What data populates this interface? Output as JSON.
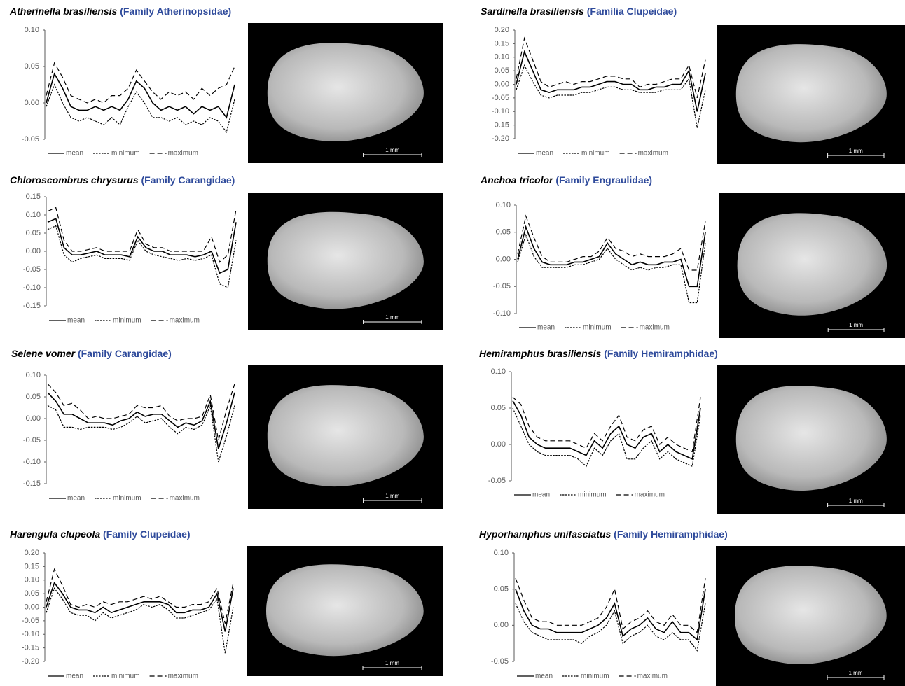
{
  "chart_data": [
    {
      "type": "line",
      "title": "Atherinella brasiliensis",
      "subtitle": "(Family Atherinopsidae)",
      "image_scale_label": "1 mm",
      "ylim": [
        -0.05,
        0.1
      ],
      "yticks": [
        {
          "value": 0.1,
          "label": "0.10"
        },
        0.05,
        {
          "value": 0,
          "label": "0.00"
        },
        -0.05
      ],
      "series": [
        {
          "name": "mean",
          "color": "#000000",
          "dash": "solid",
          "values": [
            0.0,
            0.04,
            0.02,
            -0.005,
            -0.01,
            -0.01,
            -0.005,
            -0.01,
            -0.005,
            -0.01,
            0.005,
            0.03,
            0.02,
            0.0,
            -0.01,
            -0.005,
            -0.01,
            -0.005,
            -0.015,
            -0.005,
            -0.01,
            -0.005,
            -0.02,
            0.025
          ]
        },
        {
          "name": "minimum",
          "color": "#000000",
          "dash": "dotted",
          "values": [
            -0.005,
            0.025,
            0.0,
            -0.02,
            -0.025,
            -0.02,
            -0.025,
            -0.03,
            -0.02,
            -0.03,
            -0.005,
            0.015,
            0.0,
            -0.02,
            -0.02,
            -0.025,
            -0.02,
            -0.03,
            -0.025,
            -0.03,
            -0.02,
            -0.025,
            -0.04,
            0.005
          ]
        },
        {
          "name": "maximum",
          "color": "#000000",
          "dash": "dashed",
          "values": [
            0.01,
            0.055,
            0.035,
            0.01,
            0.005,
            0.0,
            0.005,
            0.0,
            0.01,
            0.01,
            0.02,
            0.045,
            0.03,
            0.015,
            0.005,
            0.015,
            0.01,
            0.015,
            0.005,
            0.02,
            0.01,
            0.02,
            0.025,
            0.05
          ]
        }
      ]
    },
    {
      "type": "line",
      "title": "Sardinella brasiliensis",
      "subtitle": "(Família Clupeidae)",
      "image_scale_label": "1 mm",
      "ylim": [
        -0.2,
        0.2
      ],
      "yticks": [
        {
          "value": 0.2,
          "label": "0.20"
        },
        0.15,
        {
          "value": 0.1,
          "label": "0.10"
        },
        0.05,
        {
          "value": 0,
          "label": "0.00"
        },
        -0.05,
        {
          "value": -0.1,
          "label": "-0.10"
        },
        -0.15,
        {
          "value": -0.2,
          "label": "-0.20"
        }
      ],
      "series": [
        {
          "name": "mean",
          "color": "#000000",
          "dash": "solid",
          "values": [
            0.0,
            0.12,
            0.05,
            -0.02,
            -0.03,
            -0.02,
            -0.02,
            -0.02,
            -0.01,
            -0.01,
            0.0,
            0.01,
            0.01,
            0.0,
            0.0,
            -0.02,
            -0.02,
            -0.01,
            -0.01,
            0.0,
            0.0,
            0.05,
            -0.1,
            0.04
          ]
        },
        {
          "name": "minimum",
          "color": "#000000",
          "dash": "dotted",
          "values": [
            -0.02,
            0.07,
            0.01,
            -0.04,
            -0.05,
            -0.04,
            -0.04,
            -0.04,
            -0.03,
            -0.03,
            -0.02,
            -0.01,
            -0.01,
            -0.02,
            -0.02,
            -0.03,
            -0.03,
            -0.03,
            -0.02,
            -0.02,
            -0.02,
            0.02,
            -0.16,
            -0.02
          ]
        },
        {
          "name": "maximum",
          "color": "#000000",
          "dash": "dashed",
          "values": [
            0.02,
            0.17,
            0.09,
            0.01,
            -0.01,
            0.0,
            0.01,
            0.0,
            0.01,
            0.01,
            0.02,
            0.03,
            0.03,
            0.02,
            0.02,
            -0.01,
            0.0,
            0.0,
            0.01,
            0.02,
            0.02,
            0.07,
            -0.05,
            0.09
          ]
        }
      ]
    },
    {
      "type": "line",
      "title": "Chloroscombrus chrysurus",
      "subtitle": "(Family Carangidae)",
      "image_scale_label": "1 mm",
      "ylim": [
        -0.15,
        0.15
      ],
      "yticks": [
        0.15,
        {
          "value": 0.1,
          "label": "0.10"
        },
        0.05,
        {
          "value": 0,
          "label": "0.00"
        },
        -0.05,
        {
          "value": -0.1,
          "label": "-0.10"
        },
        -0.15
      ],
      "series": [
        {
          "name": "mean",
          "color": "#000000",
          "dash": "solid",
          "values": [
            0.08,
            0.09,
            0.01,
            -0.01,
            -0.01,
            -0.005,
            0.0,
            -0.01,
            -0.01,
            -0.01,
            -0.015,
            0.04,
            0.01,
            0.0,
            0.0,
            -0.01,
            -0.01,
            -0.01,
            -0.015,
            -0.01,
            0.0,
            -0.06,
            -0.05,
            0.08
          ]
        },
        {
          "name": "minimum",
          "color": "#000000",
          "dash": "dotted",
          "values": [
            0.06,
            0.07,
            -0.01,
            -0.03,
            -0.02,
            -0.015,
            -0.01,
            -0.02,
            -0.02,
            -0.02,
            -0.025,
            0.03,
            0.0,
            -0.01,
            -0.015,
            -0.02,
            -0.025,
            -0.02,
            -0.025,
            -0.02,
            -0.01,
            -0.09,
            -0.1,
            0.03
          ]
        },
        {
          "name": "maximum",
          "color": "#000000",
          "dash": "dashed",
          "values": [
            0.11,
            0.12,
            0.03,
            0.0,
            0.0,
            0.005,
            0.01,
            0.0,
            0.0,
            0.0,
            0.0,
            0.06,
            0.02,
            0.01,
            0.01,
            0.0,
            0.0,
            0.0,
            0.0,
            0.0,
            0.04,
            -0.03,
            -0.01,
            0.115
          ]
        }
      ]
    },
    {
      "type": "line",
      "title": "Anchoa tricolor",
      "subtitle": "(Family Engraulidae)",
      "image_scale_label": "1 mm",
      "ylim": [
        -0.1,
        0.1
      ],
      "yticks": [
        {
          "value": 0.1,
          "label": "0.10"
        },
        0.05,
        {
          "value": 0,
          "label": "0.00"
        },
        -0.05,
        {
          "value": -0.1,
          "label": "-0.10"
        }
      ],
      "series": [
        {
          "name": "mean",
          "color": "#000000",
          "dash": "solid",
          "values": [
            0.0,
            0.06,
            0.02,
            -0.005,
            -0.01,
            -0.01,
            -0.01,
            -0.005,
            -0.005,
            0.0,
            0.005,
            0.03,
            0.01,
            0.0,
            -0.01,
            -0.005,
            -0.01,
            -0.01,
            -0.005,
            -0.005,
            0.0,
            -0.05,
            -0.05,
            0.05
          ]
        },
        {
          "name": "minimum",
          "color": "#000000",
          "dash": "dotted",
          "values": [
            -0.005,
            0.045,
            0.005,
            -0.015,
            -0.015,
            -0.015,
            -0.015,
            -0.01,
            -0.01,
            -0.005,
            0.0,
            0.02,
            0.0,
            -0.01,
            -0.02,
            -0.015,
            -0.02,
            -0.015,
            -0.015,
            -0.01,
            -0.01,
            -0.08,
            -0.08,
            0.03
          ]
        },
        {
          "name": "maximum",
          "color": "#000000",
          "dash": "dashed",
          "values": [
            0.01,
            0.08,
            0.04,
            0.005,
            -0.005,
            -0.005,
            -0.005,
            0.0,
            0.005,
            0.005,
            0.015,
            0.04,
            0.02,
            0.015,
            0.005,
            0.01,
            0.005,
            0.005,
            0.005,
            0.01,
            0.02,
            -0.02,
            -0.02,
            0.07
          ]
        }
      ]
    },
    {
      "type": "line",
      "title": "Selene vomer",
      "subtitle": "(Family Carangidae)",
      "image_scale_label": "1 mm",
      "ylim": [
        -0.15,
        0.1
      ],
      "yticks": [
        {
          "value": 0.1,
          "label": "0.10"
        },
        0.05,
        {
          "value": 0,
          "label": "0.00"
        },
        -0.05,
        {
          "value": -0.1,
          "label": "-0.10"
        },
        -0.15
      ],
      "series": [
        {
          "name": "mean",
          "color": "#000000",
          "dash": "solid",
          "values": [
            0.06,
            0.04,
            0.01,
            0.01,
            0.0,
            -0.01,
            -0.01,
            -0.01,
            -0.015,
            -0.005,
            0.0,
            0.015,
            0.005,
            0.01,
            0.01,
            -0.005,
            -0.02,
            -0.01,
            -0.015,
            -0.005,
            0.04,
            -0.07,
            -0.01,
            0.06
          ]
        },
        {
          "name": "minimum",
          "color": "#000000",
          "dash": "dotted",
          "values": [
            0.03,
            0.02,
            -0.02,
            -0.02,
            -0.025,
            -0.02,
            -0.02,
            -0.02,
            -0.025,
            -0.02,
            -0.01,
            0.005,
            -0.01,
            -0.005,
            0.0,
            -0.02,
            -0.035,
            -0.02,
            -0.025,
            -0.015,
            0.03,
            -0.1,
            -0.04,
            0.03
          ]
        },
        {
          "name": "maximum",
          "color": "#000000",
          "dash": "dashed",
          "values": [
            0.08,
            0.06,
            0.03,
            0.035,
            0.02,
            0.0,
            0.005,
            0.0,
            0.0,
            0.005,
            0.01,
            0.03,
            0.025,
            0.025,
            0.03,
            0.005,
            -0.005,
            0.0,
            0.0,
            0.005,
            0.055,
            -0.05,
            0.02,
            0.08
          ]
        }
      ]
    },
    {
      "type": "line",
      "title": "Hemiramphus brasiliensis",
      "subtitle": "(Family Hemiramphidae)",
      "image_scale_label": "1 mm",
      "ylim": [
        -0.05,
        0.1
      ],
      "yticks": [
        {
          "value": 0.1,
          "label": "0.10"
        },
        0.05,
        {
          "value": 0,
          "label": "0.00"
        },
        -0.05
      ],
      "series": [
        {
          "name": "mean",
          "color": "#000000",
          "dash": "solid",
          "values": [
            0.06,
            0.04,
            0.01,
            0.0,
            -0.005,
            -0.005,
            -0.005,
            -0.005,
            -0.01,
            -0.015,
            0.005,
            -0.005,
            0.015,
            0.025,
            0.0,
            -0.005,
            0.01,
            0.015,
            -0.01,
            0.0,
            -0.01,
            -0.015,
            -0.02,
            0.05
          ]
        },
        {
          "name": "minimum",
          "color": "#000000",
          "dash": "dotted",
          "values": [
            0.05,
            0.025,
            0.0,
            -0.01,
            -0.015,
            -0.015,
            -0.015,
            -0.015,
            -0.02,
            -0.03,
            -0.005,
            -0.015,
            0.005,
            0.015,
            -0.02,
            -0.02,
            -0.005,
            0.005,
            -0.02,
            -0.01,
            -0.02,
            -0.025,
            -0.03,
            0.04
          ]
        },
        {
          "name": "maximum",
          "color": "#000000",
          "dash": "dashed",
          "values": [
            0.065,
            0.055,
            0.025,
            0.01,
            0.005,
            0.005,
            0.005,
            0.005,
            0.0,
            -0.005,
            0.015,
            0.005,
            0.025,
            0.04,
            0.01,
            0.005,
            0.02,
            0.025,
            0.0,
            0.01,
            0.0,
            -0.005,
            -0.01,
            0.065
          ]
        }
      ]
    },
    {
      "type": "line",
      "title": "Harengula clupeola",
      "subtitle": "(Family Clupeidae)",
      "image_scale_label": "1 mm",
      "ylim": [
        -0.2,
        0.2
      ],
      "yticks": [
        {
          "value": 0.2,
          "label": "0.20"
        },
        0.15,
        {
          "value": 0.1,
          "label": "0.10"
        },
        0.05,
        {
          "value": 0,
          "label": "0.00"
        },
        -0.05,
        {
          "value": -0.1,
          "label": "-0.10"
        },
        -0.15,
        {
          "value": -0.2,
          "label": "-0.20"
        }
      ],
      "series": [
        {
          "name": "mean",
          "color": "#000000",
          "dash": "solid",
          "values": [
            0.0,
            0.09,
            0.05,
            0.0,
            -0.01,
            -0.01,
            -0.02,
            0.0,
            -0.02,
            -0.01,
            0.0,
            0.01,
            0.02,
            0.02,
            0.02,
            0.01,
            -0.02,
            -0.02,
            -0.01,
            -0.01,
            0.0,
            0.05,
            -0.09,
            0.07
          ]
        },
        {
          "name": "minimum",
          "color": "#000000",
          "dash": "dotted",
          "values": [
            -0.02,
            0.07,
            0.03,
            -0.02,
            -0.03,
            -0.03,
            -0.05,
            -0.02,
            -0.04,
            -0.03,
            -0.02,
            -0.01,
            0.01,
            0.0,
            0.01,
            -0.01,
            -0.04,
            -0.04,
            -0.03,
            -0.02,
            -0.01,
            0.03,
            -0.17,
            0.0
          ]
        },
        {
          "name": "maximum",
          "color": "#000000",
          "dash": "dashed",
          "values": [
            0.02,
            0.14,
            0.08,
            0.01,
            0.0,
            0.01,
            0.0,
            0.02,
            0.01,
            0.02,
            0.02,
            0.03,
            0.04,
            0.03,
            0.04,
            0.02,
            0.0,
            0.0,
            0.01,
            0.01,
            0.02,
            0.07,
            -0.06,
            0.09
          ]
        }
      ]
    },
    {
      "type": "line",
      "title": "Hyporhamphus unifasciatus",
      "subtitle": "(Family Hemiramphidae)",
      "image_scale_label": "1 mm",
      "ylim": [
        -0.05,
        0.1
      ],
      "yticks": [
        {
          "value": 0.1,
          "label": "0.10"
        },
        0.05,
        {
          "value": 0,
          "label": "0.00"
        },
        -0.05
      ],
      "series": [
        {
          "name": "mean",
          "color": "#000000",
          "dash": "solid",
          "values": [
            0.05,
            0.02,
            0.0,
            -0.005,
            -0.005,
            -0.01,
            -0.01,
            -0.01,
            -0.01,
            -0.005,
            0.0,
            0.01,
            0.03,
            -0.015,
            -0.005,
            0.0,
            0.01,
            -0.005,
            -0.01,
            0.005,
            -0.01,
            -0.01,
            -0.02,
            0.05
          ]
        },
        {
          "name": "minimum",
          "color": "#000000",
          "dash": "dotted",
          "values": [
            0.03,
            0.005,
            -0.01,
            -0.015,
            -0.02,
            -0.02,
            -0.02,
            -0.02,
            -0.025,
            -0.015,
            -0.01,
            0.0,
            0.02,
            -0.025,
            -0.015,
            -0.01,
            0.0,
            -0.015,
            -0.02,
            -0.01,
            -0.02,
            -0.02,
            -0.035,
            0.03
          ]
        },
        {
          "name": "maximum",
          "color": "#000000",
          "dash": "dashed",
          "values": [
            0.065,
            0.035,
            0.01,
            0.005,
            0.005,
            0.0,
            0.0,
            0.0,
            0.0,
            0.005,
            0.01,
            0.025,
            0.05,
            -0.005,
            0.005,
            0.01,
            0.02,
            0.005,
            0.0,
            0.015,
            0.0,
            0.0,
            -0.01,
            0.065
          ]
        }
      ]
    }
  ]
}
